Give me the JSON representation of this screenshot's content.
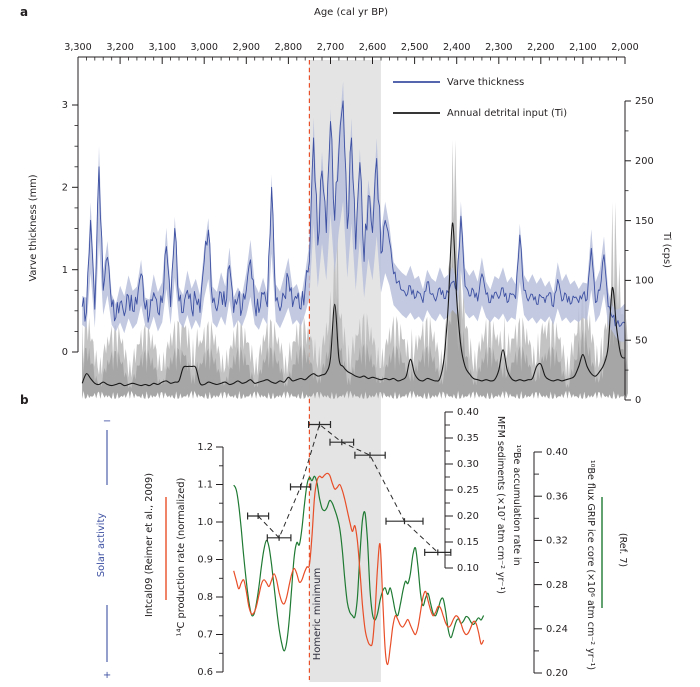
{
  "figure": {
    "panel_a_label": "a",
    "panel_b_label": "b",
    "background": "#ffffff"
  },
  "colors": {
    "axis_text": "#231f20",
    "varve_blue": "#3d50a2",
    "varve_band": "#b7bfdc",
    "ti_raw_light": "#bcbcbc",
    "ti_raw_dark": "#a3a3a3",
    "ti_line": "#1a1a1a",
    "red_curve": "#e84e28",
    "green_curve": "#1f7a33",
    "dashed_red": "#e8502a",
    "homeric_band": "#e4e4e4",
    "homeric_text": "#30303f",
    "errorbar_black": "#2b2b2b"
  },
  "age_axis": {
    "title": "Age (cal yr BP)",
    "min": 2000,
    "max": 3300,
    "major_step": 100,
    "minor_step": 20,
    "ticks": [
      3300,
      3200,
      3100,
      3000,
      2900,
      2800,
      2700,
      2600,
      2500,
      2400,
      2300,
      2200,
      2100,
      2000
    ],
    "tick_labels": [
      "3,300",
      "3,200",
      "3,100",
      "3,000",
      "2,900",
      "2,800",
      "2,700",
      "2,600",
      "2,500",
      "2,400",
      "2,300",
      "2,200",
      "2,100",
      "2,000"
    ]
  },
  "panel_a": {
    "legend": [
      {
        "label": "Varve thickness",
        "color": "#3d50a2"
      },
      {
        "label": "Annual detrital input (Ti)",
        "color": "#1a1a1a"
      }
    ],
    "varve_axis": {
      "label": "Varve thickness (mm)",
      "min": 0,
      "max": 3,
      "ticks": [
        0,
        1,
        2,
        3
      ],
      "tick_labels": [
        "0",
        "1",
        "2",
        "3"
      ],
      "minor_step": 0.25
    },
    "ti_axis": {
      "label": "Ti (cps)",
      "min": 0,
      "max": 250,
      "ticks": [
        0,
        50,
        100,
        150,
        200,
        250
      ],
      "tick_labels": [
        "0",
        "50",
        "100",
        "150",
        "200",
        "250"
      ],
      "minor_step": 25
    }
  },
  "panel_b": {
    "solar": {
      "label": "Solar activity",
      "minus_symbol": "−",
      "plus_symbol": "+"
    },
    "intcal_label": "Intcal09 (Reimer et al., 2009)",
    "c14_axis": {
      "label": "¹⁴C production rate (normalized)",
      "min": 0.6,
      "max": 1.2,
      "ticks": [
        1.2,
        1.1,
        1.0,
        0.9,
        0.8,
        0.7,
        0.6
      ],
      "tick_labels": [
        "1.2",
        "1.1",
        "1.0",
        "0.9",
        "0.8",
        "0.7",
        "0.6"
      ],
      "minor_step": 0.05
    },
    "mfm_axis": {
      "label_line1": "¹⁰Be accumulation rate in",
      "label_line2": "MFM sediments (×10⁷ atm cm⁻² yr⁻¹)",
      "min": 0.1,
      "max": 0.4,
      "ticks": [
        0.4,
        0.35,
        0.3,
        0.25,
        0.2,
        0.15,
        0.1
      ],
      "tick_labels": [
        "0.40",
        "0.35",
        "0.30",
        "0.25",
        "0.20",
        "0.15",
        "0.10"
      ],
      "minor_step": 0.025
    },
    "grip_axis": {
      "label": "¹⁰Be flux GRIP ice core (×10⁶ atm cm⁻² yr⁻¹)",
      "ref_label": "(Ref. 7)",
      "min": 0.2,
      "max": 0.4,
      "ticks": [
        0.4,
        0.36,
        0.32,
        0.28,
        0.24,
        0.2
      ],
      "tick_labels": [
        "0.40",
        "0.36",
        "0.32",
        "0.28",
        "0.24",
        "0.20"
      ],
      "minor_step": 0.02
    },
    "homeric": {
      "label": "Homeric minimum"
    }
  },
  "homeric_band": {
    "start_age": 2750,
    "end_age": 2580,
    "line_age": 2750
  },
  "chart_data": [
    {
      "id": "varve",
      "type": "line",
      "title": "Varve thickness",
      "xlabel": "Age (cal yr BP)",
      "ylabel": "Varve thickness (mm)",
      "ylim": [
        0,
        3.3
      ],
      "x_start": 3290,
      "x_step": -10,
      "values": [
        0.55,
        0.48,
        1.6,
        0.52,
        2.25,
        0.75,
        1.15,
        0.55,
        0.42,
        0.6,
        0.44,
        0.68,
        0.5,
        0.58,
        0.95,
        0.52,
        0.45,
        0.72,
        0.48,
        0.6,
        1.28,
        0.55,
        1.5,
        0.62,
        0.48,
        0.75,
        0.52,
        0.65,
        0.48,
        1.1,
        1.48,
        0.6,
        0.5,
        0.72,
        0.55,
        1.05,
        0.48,
        0.65,
        0.52,
        0.75,
        1.12,
        0.58,
        0.48,
        0.7,
        0.55,
        2.0,
        0.62,
        0.5,
        0.68,
        0.9,
        0.55,
        0.65,
        0.52,
        0.78,
        1.1,
        2.6,
        1.3,
        2.2,
        1.45,
        2.8,
        1.6,
        2.45,
        3.05,
        1.5,
        2.6,
        1.25,
        2.3,
        1.1,
        1.9,
        1.45,
        2.35,
        1.2,
        1.6,
        1.35,
        0.95,
        0.85,
        0.75,
        0.68,
        0.8,
        0.65,
        0.72,
        0.6,
        0.85,
        0.7,
        0.62,
        0.78,
        0.65,
        0.72,
        0.85,
        0.75,
        1.65,
        0.8,
        0.68,
        0.75,
        0.62,
        0.95,
        0.7,
        0.6,
        0.72,
        0.65,
        0.78,
        0.6,
        0.7,
        0.65,
        1.42,
        0.75,
        0.62,
        0.7,
        0.58,
        0.68,
        0.6,
        0.72,
        0.55,
        0.88,
        0.62,
        0.7,
        0.58,
        0.66,
        0.6,
        0.7,
        0.64,
        1.26,
        0.6,
        0.75,
        1.18,
        0.55,
        0.42,
        0.34,
        0.32,
        0.35
      ],
      "band": {
        "above": 0.13,
        "below": 0.25
      }
    },
    {
      "id": "ti",
      "type": "line",
      "title": "Annual detrital input (Ti)",
      "xlabel": "Age (cal yr BP)",
      "ylabel": "Ti (cps)",
      "ylim": [
        0,
        250
      ],
      "x_start": 3290,
      "x_step": -10,
      "values": [
        14,
        22,
        18,
        14,
        13,
        15,
        13,
        12,
        13,
        14,
        12,
        13,
        14,
        13,
        12,
        13,
        12,
        14,
        13,
        15,
        16,
        14,
        15,
        16,
        27,
        28,
        28,
        27,
        14,
        13,
        15,
        14,
        13,
        14,
        15,
        13,
        14,
        16,
        14,
        15,
        17,
        14,
        15,
        16,
        17,
        15,
        14,
        16,
        15,
        19,
        16,
        17,
        18,
        17,
        20,
        22,
        20,
        21,
        23,
        35,
        80,
        35,
        28,
        24,
        22,
        20,
        19,
        20,
        18,
        19,
        18,
        17,
        18,
        17,
        18,
        16,
        17,
        20,
        34,
        22,
        17,
        16,
        18,
        17,
        16,
        18,
        35,
        80,
        148,
        85,
        45,
        28,
        22,
        18,
        17,
        16,
        17,
        16,
        17,
        25,
        42,
        25,
        18,
        16,
        17,
        16,
        17,
        18,
        28,
        30,
        20,
        17,
        16,
        17,
        16,
        17,
        18,
        20,
        28,
        38,
        28,
        22,
        20,
        24,
        30,
        45,
        94,
        60,
        38,
        35
      ],
      "raw_band": {
        "gain": 1.25,
        "offset": 32,
        "jitter": 16,
        "floor": 8
      }
    },
    {
      "id": "c14",
      "type": "line",
      "title": "¹⁴C production rate (normalized), Intcal09 (Reimer et al., 2009)",
      "ylim": [
        0.6,
        1.2
      ],
      "x_start": 2930,
      "x_step": -6,
      "y": [
        0.87,
        0.845,
        0.822,
        0.838,
        0.845,
        0.815,
        0.775,
        0.755,
        0.758,
        0.775,
        0.805,
        0.835,
        0.846,
        0.838,
        0.828,
        0.845,
        0.862,
        0.845,
        0.812,
        0.788,
        0.782,
        0.8,
        0.832,
        0.862,
        0.876,
        0.862,
        0.84,
        0.845,
        0.865,
        0.88,
        0.886,
        0.96,
        1.065,
        1.11,
        1.122,
        1.118,
        1.125,
        1.13,
        1.125,
        1.105,
        1.088,
        1.092,
        1.1,
        1.085,
        1.06,
        1.03,
        1.0,
        0.975,
        0.99,
        0.95,
        0.87,
        0.78,
        0.715,
        0.685,
        0.672,
        0.68,
        0.76,
        0.88,
        0.94,
        0.8,
        0.66,
        0.62,
        0.665,
        0.72,
        0.75,
        0.74,
        0.725,
        0.72,
        0.73,
        0.74,
        0.725,
        0.71,
        0.7,
        0.72,
        0.76,
        0.8,
        0.815,
        0.79,
        0.765,
        0.75,
        0.76,
        0.775,
        0.77,
        0.75,
        0.73,
        0.72,
        0.725,
        0.74,
        0.75,
        0.745,
        0.73,
        0.71,
        0.7,
        0.705,
        0.72,
        0.735,
        0.73,
        0.705,
        0.675,
        0.685
      ]
    },
    {
      "id": "grip",
      "type": "line",
      "title": "¹⁰Be flux GRIP ice core (×10⁶ atm cm⁻² yr⁻¹)",
      "ylim": [
        0.2,
        0.4
      ],
      "x_start": 2930,
      "x_step": -6,
      "y": [
        0.37,
        0.366,
        0.352,
        0.33,
        0.305,
        0.283,
        0.265,
        0.253,
        0.253,
        0.263,
        0.278,
        0.297,
        0.312,
        0.32,
        0.314,
        0.298,
        0.278,
        0.258,
        0.24,
        0.227,
        0.22,
        0.228,
        0.248,
        0.278,
        0.306,
        0.318,
        0.316,
        0.33,
        0.352,
        0.37,
        0.377,
        0.374,
        0.378,
        0.372,
        0.358,
        0.349,
        0.347,
        0.35,
        0.356,
        0.354,
        0.348,
        0.341,
        0.331,
        0.312,
        0.285,
        0.264,
        0.255,
        0.252,
        0.251,
        0.268,
        0.307,
        0.338,
        0.345,
        0.32,
        0.275,
        0.253,
        0.248,
        0.254,
        0.266,
        0.274,
        0.277,
        0.271,
        0.277,
        0.268,
        0.256,
        0.252,
        0.262,
        0.274,
        0.283,
        0.281,
        0.29,
        0.307,
        0.313,
        0.296,
        0.272,
        0.261,
        0.268,
        0.272,
        0.263,
        0.254,
        0.252,
        0.258,
        0.266,
        0.267,
        0.255,
        0.239,
        0.232,
        0.238,
        0.246,
        0.249,
        0.245,
        0.247,
        0.251,
        0.25,
        0.246,
        0.244,
        0.247,
        0.25,
        0.248,
        0.252
      ]
    },
    {
      "id": "be10_mfm",
      "type": "scatter",
      "title": "¹⁰Be accumulation rate in MFM sediments (×10⁷ atm cm⁻² yr⁻¹)",
      "ylim": [
        0.1,
        0.4
      ],
      "points": [
        {
          "age": 2872,
          "value": 0.2,
          "age_err": 25
        },
        {
          "age": 2822,
          "value": 0.158,
          "age_err": 28
        },
        {
          "age": 2771,
          "value": 0.256,
          "age_err": 24
        },
        {
          "age": 2726,
          "value": 0.376,
          "age_err": 26
        },
        {
          "age": 2673,
          "value": 0.342,
          "age_err": 28
        },
        {
          "age": 2606,
          "value": 0.317,
          "age_err": 36
        },
        {
          "age": 2524,
          "value": 0.19,
          "age_err": 44
        },
        {
          "age": 2445,
          "value": 0.13,
          "age_err": 31
        }
      ]
    }
  ]
}
